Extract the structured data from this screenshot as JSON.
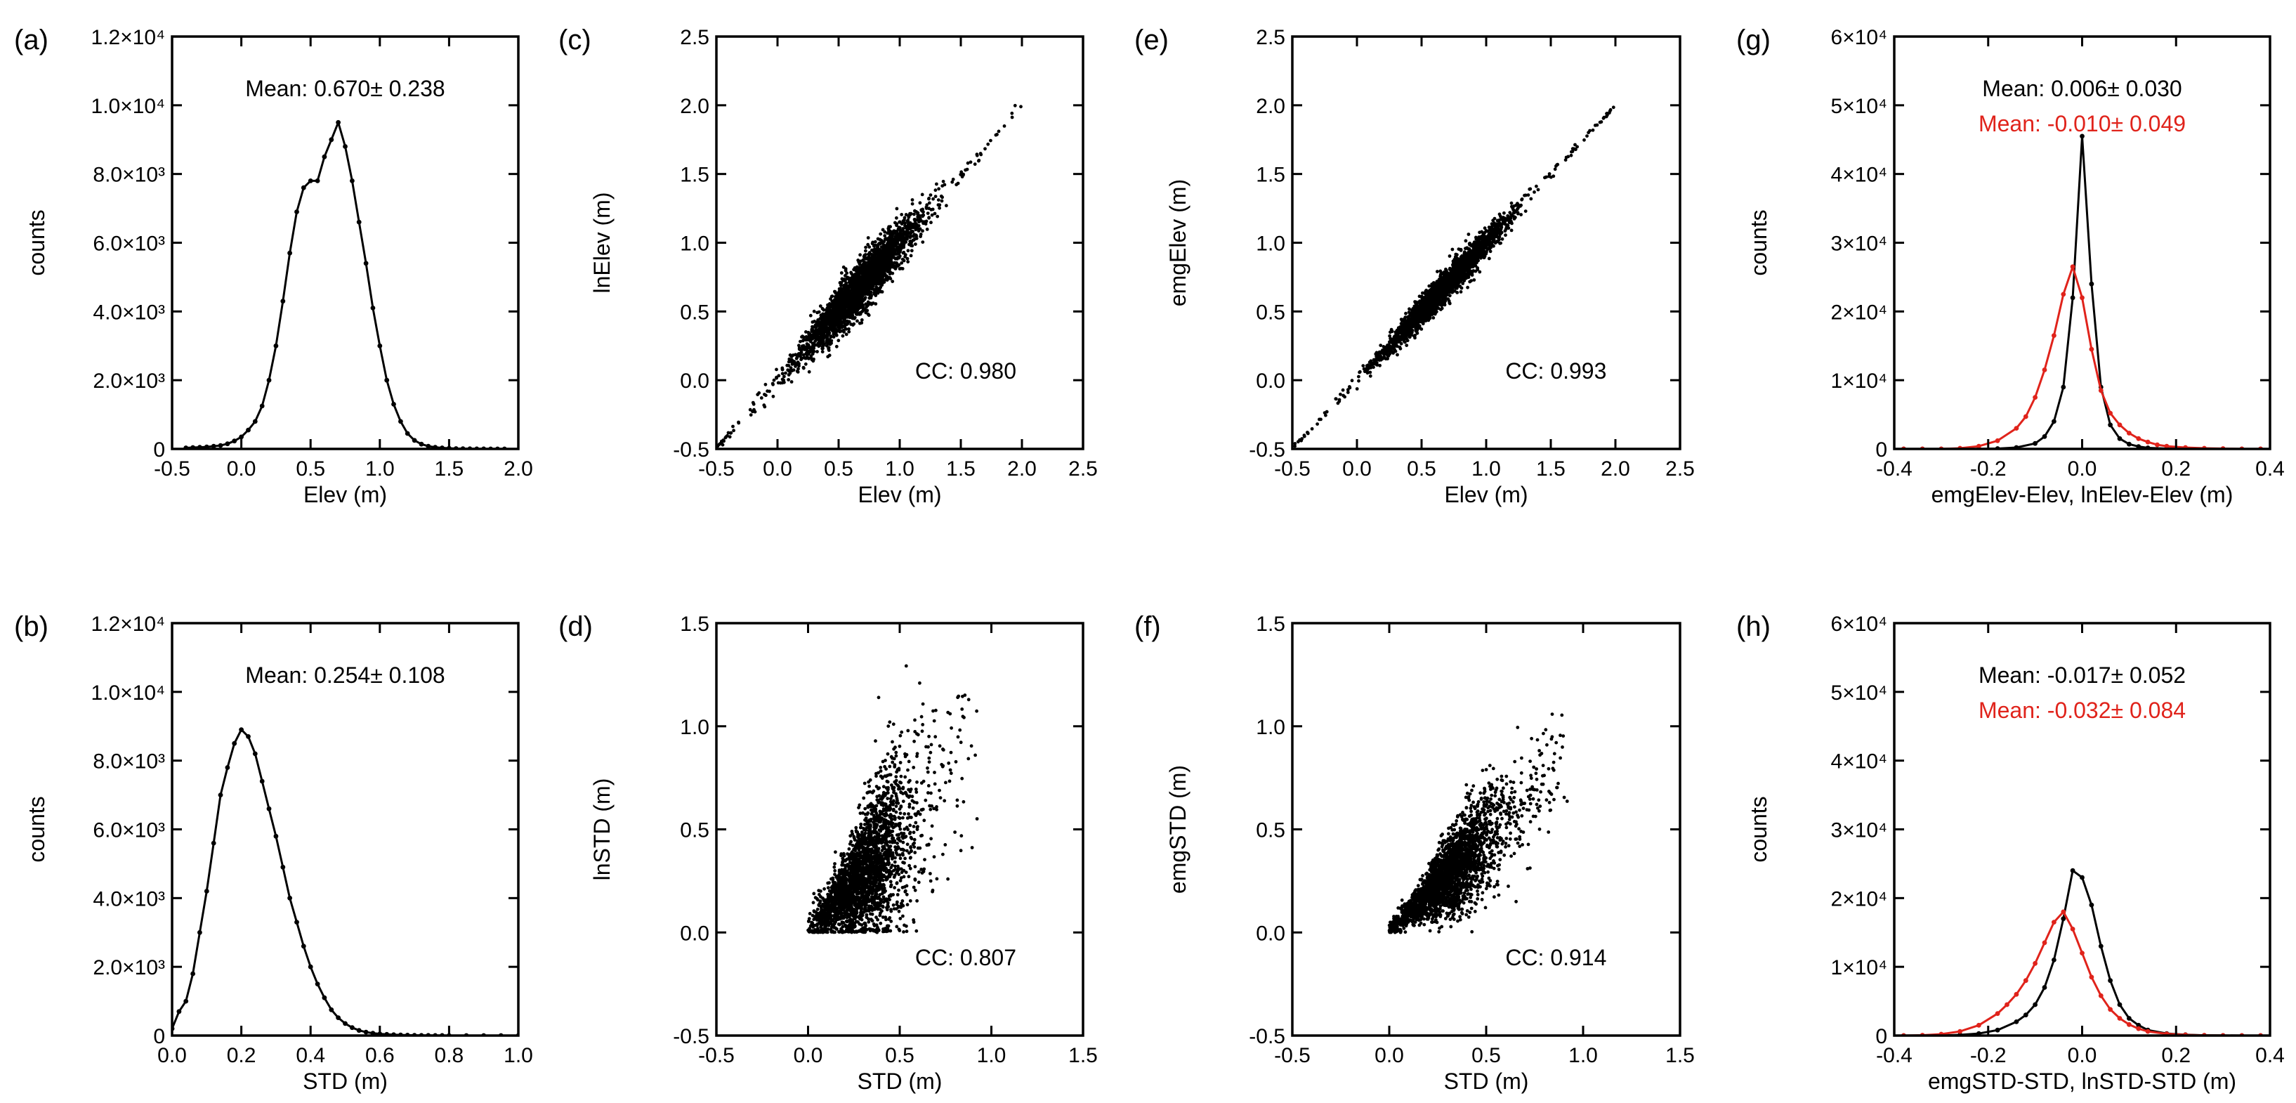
{
  "colors": {
    "black": "#000000",
    "red": "#e0231b"
  },
  "chart_data": [
    {
      "id": "a",
      "type": "line",
      "panel_label": "(a)",
      "xlabel": "Elev (m)",
      "ylabel": "counts",
      "xlim": [
        -0.5,
        2.0
      ],
      "ylim": [
        0,
        12000
      ],
      "xticks": [
        -0.5,
        0.0,
        0.5,
        1.0,
        1.5,
        2.0
      ],
      "xtick_labels": [
        "-0.5",
        "0.0",
        "0.5",
        "1.0",
        "1.5",
        "2.0"
      ],
      "yticks": [
        0,
        2000,
        4000,
        6000,
        8000,
        10000,
        12000
      ],
      "ytick_labels": [
        "0",
        "2.0×10³",
        "4.0×10³",
        "6.0×10³",
        "8.0×10³",
        "1.0×10⁴",
        "1.2×10⁴"
      ],
      "annotations": [
        {
          "text": "Mean:  0.670± 0.238",
          "color": "#000000"
        }
      ],
      "series": [
        {
          "color": "#000000",
          "markers": true,
          "x": [
            -0.4,
            -0.35,
            -0.3,
            -0.25,
            -0.2,
            -0.15,
            -0.1,
            -0.05,
            0.0,
            0.05,
            0.1,
            0.15,
            0.2,
            0.25,
            0.3,
            0.35,
            0.4,
            0.45,
            0.5,
            0.55,
            0.6,
            0.65,
            0.7,
            0.75,
            0.8,
            0.85,
            0.9,
            0.95,
            1.0,
            1.05,
            1.1,
            1.15,
            1.2,
            1.25,
            1.3,
            1.35,
            1.4,
            1.45,
            1.5,
            1.55,
            1.6,
            1.65,
            1.7,
            1.75,
            1.8,
            1.85,
            1.9
          ],
          "y": [
            30,
            40,
            50,
            60,
            80,
            100,
            150,
            230,
            350,
            550,
            800,
            1250,
            2000,
            3000,
            4300,
            5700,
            6900,
            7600,
            7800,
            7800,
            8500,
            9000,
            9500,
            8800,
            7800,
            6600,
            5400,
            4100,
            3000,
            2000,
            1300,
            800,
            450,
            250,
            140,
            80,
            50,
            30,
            20,
            10,
            8,
            5,
            3,
            2,
            1,
            0,
            0
          ]
        }
      ]
    },
    {
      "id": "b",
      "type": "line",
      "panel_label": "(b)",
      "xlabel": "STD (m)",
      "ylabel": "counts",
      "xlim": [
        0.0,
        1.0
      ],
      "ylim": [
        0,
        12000
      ],
      "xticks": [
        0.0,
        0.2,
        0.4,
        0.6,
        0.8,
        1.0
      ],
      "xtick_labels": [
        "0.0",
        "0.2",
        "0.4",
        "0.6",
        "0.8",
        "1.0"
      ],
      "yticks": [
        0,
        2000,
        4000,
        6000,
        8000,
        10000,
        12000
      ],
      "ytick_labels": [
        "0",
        "2.0×10³",
        "4.0×10³",
        "6.0×10³",
        "8.0×10³",
        "1.0×10⁴",
        "1.2×10⁴"
      ],
      "annotations": [
        {
          "text": "Mean:  0.254± 0.108",
          "color": "#000000"
        }
      ],
      "series": [
        {
          "color": "#000000",
          "markers": true,
          "x": [
            0.0,
            0.02,
            0.04,
            0.06,
            0.08,
            0.1,
            0.12,
            0.14,
            0.16,
            0.18,
            0.2,
            0.22,
            0.24,
            0.26,
            0.28,
            0.3,
            0.32,
            0.34,
            0.36,
            0.38,
            0.4,
            0.42,
            0.44,
            0.46,
            0.48,
            0.5,
            0.52,
            0.54,
            0.56,
            0.58,
            0.6,
            0.62,
            0.64,
            0.66,
            0.68,
            0.7,
            0.72,
            0.74,
            0.76,
            0.78,
            0.8,
            0.85,
            0.9,
            0.95,
            1.0
          ],
          "y": [
            200,
            700,
            1000,
            1800,
            3000,
            4200,
            5600,
            7000,
            7800,
            8500,
            8900,
            8700,
            8200,
            7400,
            6600,
            5800,
            4900,
            4000,
            3300,
            2600,
            2000,
            1500,
            1100,
            750,
            520,
            350,
            230,
            150,
            100,
            70,
            50,
            35,
            25,
            18,
            12,
            8,
            5,
            4,
            3,
            2,
            1,
            1,
            0,
            0,
            0
          ]
        }
      ]
    },
    {
      "id": "c",
      "type": "scatter",
      "panel_label": "(c)",
      "xlabel": "Elev (m)",
      "ylabel": "lnElev (m)",
      "xlim": [
        -0.5,
        2.5
      ],
      "ylim": [
        -0.5,
        2.5
      ],
      "xticks": [
        -0.5,
        0.0,
        0.5,
        1.0,
        1.5,
        2.0,
        2.5
      ],
      "xtick_labels": [
        "-0.5",
        "0.0",
        "0.5",
        "1.0",
        "1.5",
        "2.0",
        "2.5"
      ],
      "yticks": [
        -0.5,
        0.0,
        0.5,
        1.0,
        1.5,
        2.0,
        2.5
      ],
      "ytick_labels": [
        "-0.5",
        "0.0",
        "0.5",
        "1.0",
        "1.5",
        "2.0",
        "2.5"
      ],
      "annotations": [
        {
          "text": "CC:  0.980",
          "color": "#000000"
        }
      ],
      "cloud": {
        "kind": "elev",
        "x_mean": 0.67,
        "x_std": 0.24,
        "x_min": -0.5,
        "x_max": 2.0,
        "slope": 1.0,
        "noise": 0.095,
        "n_points": 2600,
        "seed": 11
      }
    },
    {
      "id": "d",
      "type": "scatter",
      "panel_label": "(d)",
      "xlabel": "STD (m)",
      "ylabel": "lnSTD (m)",
      "xlim": [
        -0.5,
        1.5
      ],
      "ylim": [
        -0.5,
        1.5
      ],
      "xticks": [
        -0.5,
        0.0,
        0.5,
        1.0,
        1.5
      ],
      "xtick_labels": [
        "-0.5",
        "0.0",
        "0.5",
        "1.0",
        "1.5"
      ],
      "yticks": [
        -0.5,
        0.0,
        0.5,
        1.0,
        1.5
      ],
      "ytick_labels": [
        "-0.5",
        "0.0",
        "0.5",
        "1.0",
        "1.5"
      ],
      "annotations": [
        {
          "text": "CC:  0.807",
          "color": "#000000"
        }
      ],
      "cloud": {
        "kind": "std",
        "x_mean": 0.28,
        "x_std": 0.13,
        "x_min": 0.0,
        "x_max": 0.95,
        "slope": 0.95,
        "noise": 0.17,
        "n_points": 2600,
        "seed": 23
      }
    },
    {
      "id": "e",
      "type": "scatter",
      "panel_label": "(e)",
      "xlabel": "Elev (m)",
      "ylabel": "emgElev (m)",
      "xlim": [
        -0.5,
        2.5
      ],
      "ylim": [
        -0.5,
        2.5
      ],
      "xticks": [
        -0.5,
        0.0,
        0.5,
        1.0,
        1.5,
        2.0,
        2.5
      ],
      "xtick_labels": [
        "-0.5",
        "0.0",
        "0.5",
        "1.0",
        "1.5",
        "2.0",
        "2.5"
      ],
      "yticks": [
        -0.5,
        0.0,
        0.5,
        1.0,
        1.5,
        2.0,
        2.5
      ],
      "ytick_labels": [
        "-0.5",
        "0.0",
        "0.5",
        "1.0",
        "1.5",
        "2.0",
        "2.5"
      ],
      "annotations": [
        {
          "text": "CC:  0.993",
          "color": "#000000"
        }
      ],
      "cloud": {
        "kind": "elev",
        "x_mean": 0.67,
        "x_std": 0.24,
        "x_min": -0.5,
        "x_max": 2.0,
        "slope": 1.0,
        "noise": 0.055,
        "n_points": 2600,
        "seed": 37
      }
    },
    {
      "id": "f",
      "type": "scatter",
      "panel_label": "(f)",
      "xlabel": "STD (m)",
      "ylabel": "emgSTD (m)",
      "xlim": [
        -0.5,
        1.5
      ],
      "ylim": [
        -0.5,
        1.5
      ],
      "xticks": [
        -0.5,
        0.0,
        0.5,
        1.0,
        1.5
      ],
      "xtick_labels": [
        "-0.5",
        "0.0",
        "0.5",
        "1.0",
        "1.5"
      ],
      "yticks": [
        -0.5,
        0.0,
        0.5,
        1.0,
        1.5
      ],
      "ytick_labels": [
        "-0.5",
        "0.0",
        "0.5",
        "1.0",
        "1.5"
      ],
      "annotations": [
        {
          "text": "CC:  0.914",
          "color": "#000000"
        }
      ],
      "cloud": {
        "kind": "std",
        "x_mean": 0.28,
        "x_std": 0.13,
        "x_min": 0.0,
        "x_max": 0.95,
        "slope": 0.92,
        "noise": 0.1,
        "n_points": 2600,
        "seed": 51
      }
    },
    {
      "id": "g",
      "type": "line",
      "panel_label": "(g)",
      "xlabel": "emgElev-Elev, lnElev-Elev (m)",
      "ylabel": "counts",
      "xlim": [
        -0.4,
        0.4
      ],
      "ylim": [
        0,
        60000
      ],
      "xticks": [
        -0.4,
        -0.2,
        0.0,
        0.2,
        0.4
      ],
      "xtick_labels": [
        "-0.4",
        "-0.2",
        "0.0",
        "0.2",
        "0.4"
      ],
      "yticks": [
        0,
        10000,
        20000,
        30000,
        40000,
        50000,
        60000
      ],
      "ytick_labels": [
        "0",
        "1×10⁴",
        "2×10⁴",
        "3×10⁴",
        "4×10⁴",
        "5×10⁴",
        "6×10⁴"
      ],
      "annotations": [
        {
          "text": "Mean:  0.006± 0.030",
          "color": "#000000"
        },
        {
          "text": "Mean: -0.010± 0.049",
          "color": "#e0231b"
        }
      ],
      "series": [
        {
          "color": "#000000",
          "markers": true,
          "x": [
            -0.38,
            -0.34,
            -0.3,
            -0.26,
            -0.22,
            -0.18,
            -0.14,
            -0.1,
            -0.08,
            -0.06,
            -0.04,
            -0.02,
            0.0,
            0.02,
            0.04,
            0.06,
            0.08,
            0.1,
            0.12,
            0.14,
            0.18,
            0.22,
            0.26,
            0.3,
            0.34,
            0.38
          ],
          "y": [
            0,
            0,
            0,
            0,
            0,
            50,
            200,
            800,
            1800,
            4000,
            9000,
            22000,
            45500,
            24000,
            9000,
            3500,
            1500,
            700,
            350,
            150,
            50,
            20,
            5,
            0,
            0,
            0
          ]
        },
        {
          "color": "#e0231b",
          "markers": true,
          "x": [
            -0.38,
            -0.34,
            -0.3,
            -0.26,
            -0.22,
            -0.18,
            -0.14,
            -0.12,
            -0.1,
            -0.08,
            -0.06,
            -0.04,
            -0.02,
            0.0,
            0.02,
            0.04,
            0.06,
            0.08,
            0.1,
            0.12,
            0.14,
            0.16,
            0.18,
            0.22,
            0.26,
            0.3,
            0.34,
            0.38
          ],
          "y": [
            0,
            0,
            0,
            100,
            400,
            1200,
            3000,
            4700,
            7500,
            11500,
            16500,
            22500,
            26500,
            22000,
            14500,
            8500,
            5200,
            3500,
            2300,
            1500,
            1000,
            600,
            400,
            200,
            100,
            50,
            0,
            0
          ]
        }
      ]
    },
    {
      "id": "h",
      "type": "line",
      "panel_label": "(h)",
      "xlabel": "emgSTD-STD, lnSTD-STD (m)",
      "ylabel": "counts",
      "xlim": [
        -0.4,
        0.4
      ],
      "ylim": [
        0,
        60000
      ],
      "xticks": [
        -0.4,
        -0.2,
        0.0,
        0.2,
        0.4
      ],
      "xtick_labels": [
        "-0.4",
        "-0.2",
        "0.0",
        "0.2",
        "0.4"
      ],
      "yticks": [
        0,
        10000,
        20000,
        30000,
        40000,
        50000,
        60000
      ],
      "ytick_labels": [
        "0",
        "1×10⁴",
        "2×10⁴",
        "3×10⁴",
        "4×10⁴",
        "5×10⁴",
        "6×10⁴"
      ],
      "annotations": [
        {
          "text": "Mean: -0.017± 0.052",
          "color": "#000000"
        },
        {
          "text": "Mean: -0.032± 0.084",
          "color": "#e0231b"
        }
      ],
      "series": [
        {
          "color": "#000000",
          "markers": true,
          "x": [
            -0.38,
            -0.34,
            -0.3,
            -0.26,
            -0.22,
            -0.18,
            -0.14,
            -0.12,
            -0.1,
            -0.08,
            -0.06,
            -0.04,
            -0.02,
            0.0,
            0.02,
            0.04,
            0.06,
            0.08,
            0.1,
            0.12,
            0.14,
            0.18,
            0.22,
            0.26,
            0.3,
            0.34,
            0.38
          ],
          "y": [
            0,
            0,
            0,
            100,
            300,
            800,
            2000,
            3000,
            4500,
            7000,
            11000,
            17000,
            24000,
            23000,
            19000,
            13000,
            8000,
            4500,
            2500,
            1500,
            800,
            300,
            120,
            40,
            10,
            0,
            0
          ]
        },
        {
          "color": "#e0231b",
          "markers": true,
          "x": [
            -0.38,
            -0.34,
            -0.3,
            -0.26,
            -0.22,
            -0.18,
            -0.16,
            -0.14,
            -0.12,
            -0.1,
            -0.08,
            -0.06,
            -0.04,
            -0.02,
            0.0,
            0.02,
            0.04,
            0.06,
            0.08,
            0.1,
            0.12,
            0.14,
            0.18,
            0.22,
            0.26,
            0.3,
            0.34,
            0.38
          ],
          "y": [
            0,
            50,
            200,
            600,
            1500,
            3200,
            4500,
            6000,
            8000,
            10500,
            13500,
            16500,
            18000,
            15500,
            12000,
            8500,
            5800,
            3800,
            2500,
            1600,
            1000,
            600,
            250,
            100,
            30,
            10,
            0,
            0
          ]
        }
      ]
    }
  ]
}
